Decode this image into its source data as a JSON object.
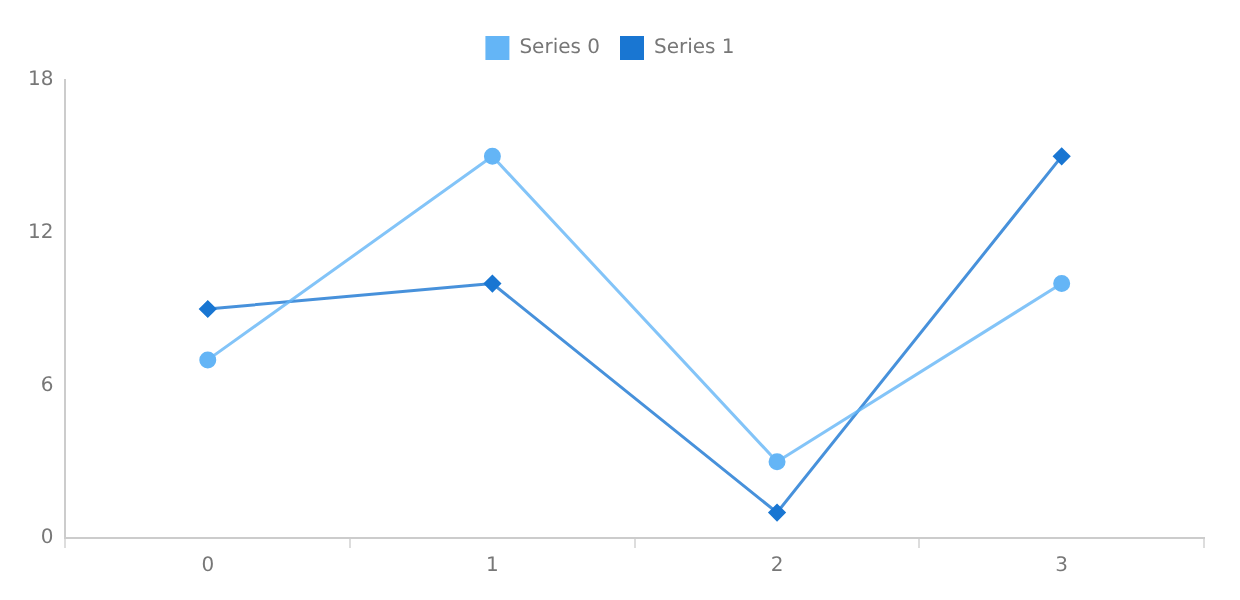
{
  "chart_data": {
    "type": "line",
    "categories": [
      "0",
      "1",
      "2",
      "3"
    ],
    "series": [
      {
        "name": "Series 0",
        "color": "#64b5f6",
        "values": [
          7,
          15,
          3,
          10
        ],
        "marker": "circle"
      },
      {
        "name": "Series 1",
        "color": "#1976d2",
        "values": [
          9,
          10,
          1,
          15
        ],
        "marker": "diamond"
      }
    ],
    "ylim": [
      0,
      18
    ],
    "yticks": [
      0,
      6,
      12,
      18
    ],
    "grid": false,
    "legend": "top"
  }
}
